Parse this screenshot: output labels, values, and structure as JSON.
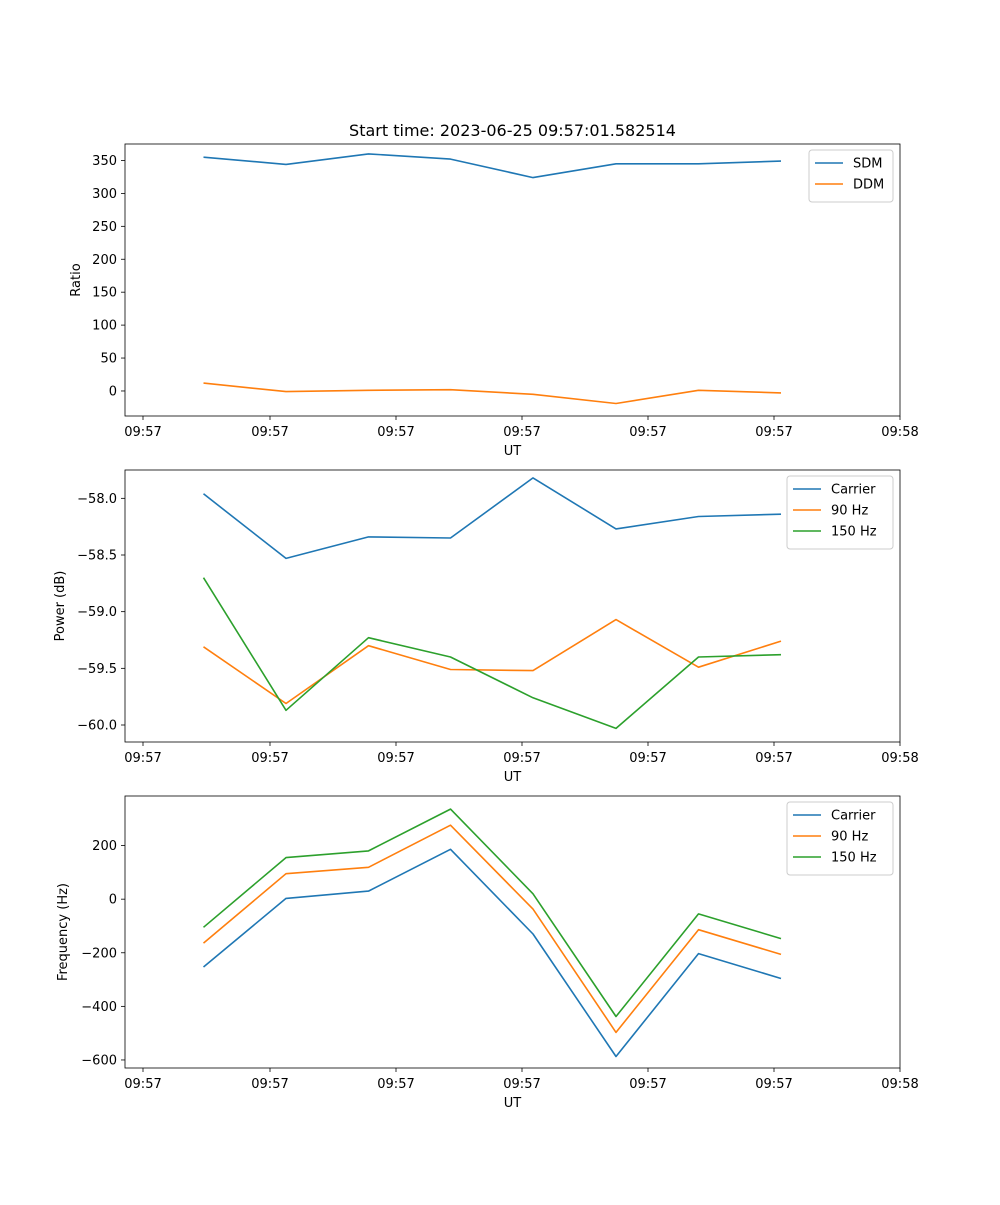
{
  "figure": {
    "title": "Start time: 2023-06-25 09:57:01.582514"
  },
  "colors": {
    "blue": "#1f77b4",
    "orange": "#ff7f0e",
    "green": "#2ca02c"
  },
  "chart_data": [
    {
      "type": "line",
      "title": "Start time: 2023-06-25 09:57:01.582514",
      "xlabel": "UT",
      "ylabel": "Ratio",
      "x_tick_labels": [
        "09:57",
        "09:57",
        "09:57",
        "09:57",
        "09:57",
        "09:57",
        "09:58"
      ],
      "y_ticks": [
        0,
        50,
        100,
        150,
        200,
        250,
        300,
        350
      ],
      "ylim": [
        -38,
        375
      ],
      "legend_position": "upper right",
      "series": [
        {
          "name": "SDM",
          "color": "#1f77b4",
          "values": [
            355,
            344,
            360,
            352,
            324,
            345,
            345,
            349
          ]
        },
        {
          "name": "DDM",
          "color": "#ff7f0e",
          "values": [
            12,
            -1,
            1,
            2,
            -5,
            -19,
            1,
            -3
          ]
        }
      ]
    },
    {
      "type": "line",
      "title": "",
      "xlabel": "UT",
      "ylabel": "Power (dB)",
      "x_tick_labels": [
        "09:57",
        "09:57",
        "09:57",
        "09:57",
        "09:57",
        "09:57",
        "09:58"
      ],
      "y_ticks": [
        -58.0,
        -58.5,
        -59.0,
        -59.5,
        -60.0
      ],
      "y_tick_labels": [
        "−58.0",
        "−58.5",
        "−59.0",
        "−59.5",
        "−60.0"
      ],
      "ylim": [
        -60.15,
        -57.75
      ],
      "legend_position": "upper right",
      "series": [
        {
          "name": "Carrier",
          "color": "#1f77b4",
          "values": [
            -57.96,
            -58.53,
            -58.34,
            -58.35,
            -57.82,
            -58.27,
            -58.16,
            -58.14
          ]
        },
        {
          "name": "90 Hz",
          "color": "#ff7f0e",
          "values": [
            -59.31,
            -59.81,
            -59.3,
            -59.51,
            -59.52,
            -59.07,
            -59.49,
            -59.26
          ]
        },
        {
          "name": "150 Hz",
          "color": "#2ca02c",
          "values": [
            -58.7,
            -59.87,
            -59.23,
            -59.4,
            -59.76,
            -60.03,
            -59.4,
            -59.38
          ]
        }
      ]
    },
    {
      "type": "line",
      "title": "",
      "xlabel": "UT",
      "ylabel": "Frequency (Hz)",
      "x_tick_labels": [
        "09:57",
        "09:57",
        "09:57",
        "09:57",
        "09:57",
        "09:57",
        "09:58"
      ],
      "y_ticks": [
        200,
        0,
        -200,
        -400,
        -600
      ],
      "y_tick_labels": [
        "200",
        "0",
        "−200",
        "−400",
        "−600"
      ],
      "ylim": [
        -630,
        385
      ],
      "legend_position": "upper right",
      "series": [
        {
          "name": "Carrier",
          "color": "#1f77b4",
          "values": [
            -253,
            3,
            30,
            186,
            -130,
            -587,
            -203,
            -296
          ]
        },
        {
          "name": "90 Hz",
          "color": "#ff7f0e",
          "values": [
            -164,
            95,
            119,
            276,
            -37,
            -497,
            -114,
            -206
          ]
        },
        {
          "name": "150 Hz",
          "color": "#2ca02c",
          "values": [
            -105,
            155,
            180,
            336,
            20,
            -438,
            -55,
            -147
          ]
        }
      ]
    }
  ]
}
